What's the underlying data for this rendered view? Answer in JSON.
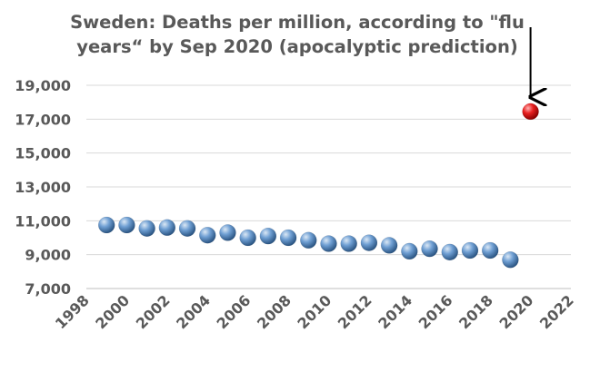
{
  "chart_data": {
    "type": "scatter",
    "title_lines": [
      "Sweden: Deaths per million, according to \"flu",
      "years“ by Sep 2020 (apocalyptic prediction)"
    ],
    "xlabel": "",
    "ylabel": "",
    "xlim": [
      1998,
      2022
    ],
    "ylim": [
      7000,
      19000
    ],
    "x_ticks": [
      "1998",
      "2000",
      "2002",
      "2004",
      "2006",
      "2008",
      "2010",
      "2012",
      "2014",
      "2016",
      "2018",
      "2020",
      "2022"
    ],
    "y_ticks": [
      "7,000",
      "9,000",
      "11,000",
      "13,000",
      "15,000",
      "17,000",
      "19,000"
    ],
    "grid": true,
    "series": [
      {
        "color": "#4f81bd",
        "x": [
          1999,
          2000,
          2001,
          2002,
          2003,
          2004,
          2005,
          2006,
          2007,
          2008,
          2009,
          2010,
          2011,
          2012,
          2013,
          2014,
          2015,
          2016,
          2017,
          2018,
          2019
        ],
        "y": [
          10750,
          10750,
          10550,
          10600,
          10550,
          10150,
          10300,
          10000,
          10100,
          10000,
          9850,
          9650,
          9650,
          9700,
          9550,
          9200,
          9350,
          9150,
          9250,
          9250,
          8700
        ]
      },
      {
        "color": "#e31a1c",
        "x": [
          2020
        ],
        "y": [
          17450
        ]
      }
    ],
    "annotation": {
      "type": "arrow",
      "target_x": 2020,
      "target_y": 17450,
      "color": "#000000"
    }
  }
}
